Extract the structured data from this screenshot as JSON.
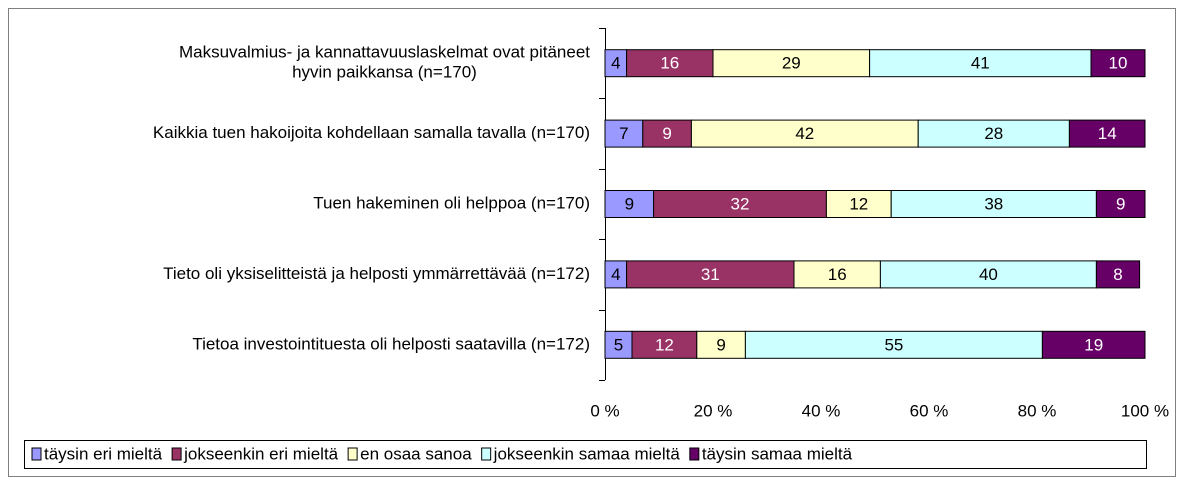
{
  "chart_data": {
    "type": "stacked_barh",
    "categories": [
      [
        "Maksuvalmius- ja kannattavuuslaskelmat ovat pitäneet",
        "hyvin paikkansa (n=170)"
      ],
      "Kaikkia tuen hakoijoita kohdellaan samalla tavalla (n=170)",
      "Tuen hakeminen oli helppoa (n=170)",
      "Tieto oli yksiselitteistä ja helposti ymmärrettävää (n=172)",
      "Tietoa investointituesta oli helposti saatavilla (n=172)"
    ],
    "series": [
      {
        "name": "täysin eri mieltä",
        "color": "#9999ff",
        "text_color": "#000000",
        "values": [
          4,
          7,
          9,
          4,
          5
        ]
      },
      {
        "name": "jokseenkin eri mieltä",
        "color": "#993366",
        "text_color": "#ffffff",
        "values": [
          16,
          9,
          32,
          31,
          12
        ]
      },
      {
        "name": "en osaa sanoa",
        "color": "#ffffcc",
        "text_color": "#000000",
        "values": [
          29,
          42,
          12,
          16,
          9
        ]
      },
      {
        "name": "jokseenkin samaa mieltä",
        "color": "#ccffff",
        "text_color": "#000000",
        "values": [
          41,
          28,
          38,
          40,
          55
        ]
      },
      {
        "name": "täysin samaa mieltä",
        "color": "#660066",
        "text_color": "#ffffff",
        "values": [
          10,
          14,
          9,
          8,
          19
        ]
      }
    ],
    "xlim": [
      0,
      100
    ],
    "xticks": [
      {
        "value": 0,
        "label": "0 %"
      },
      {
        "value": 20,
        "label": "20 %"
      },
      {
        "value": 40,
        "label": "40 %"
      },
      {
        "value": 60,
        "label": "60 %"
      },
      {
        "value": 80,
        "label": "80 %"
      },
      {
        "value": 100,
        "label": "100 %"
      }
    ],
    "legend": "bottom"
  }
}
